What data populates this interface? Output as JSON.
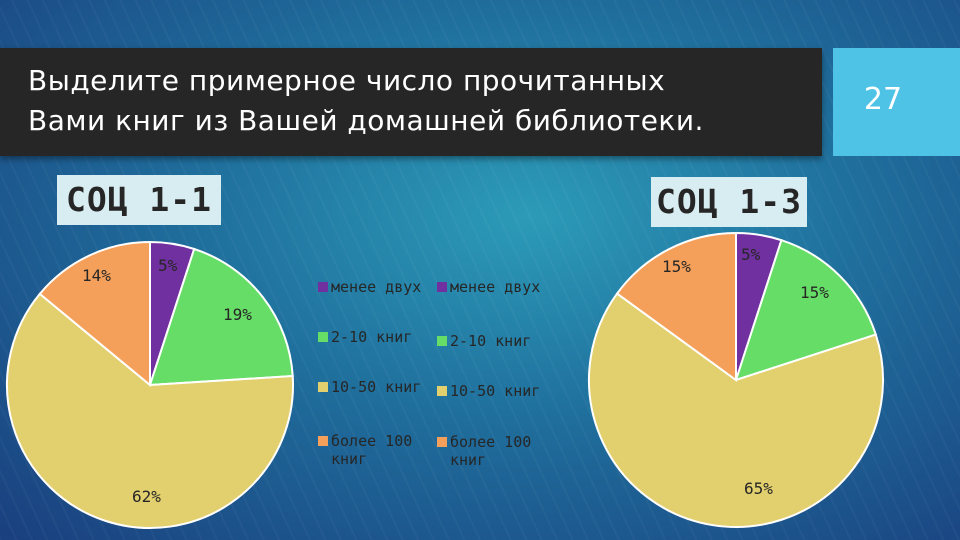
{
  "slide": {
    "title_line1": "Выделите примерное число прочитанных",
    "title_line2": "Вами книг из Вашей домашней библиотеки.",
    "page_number": "27"
  },
  "colors": {
    "purple": "#7030a0",
    "green": "#66dd66",
    "yellow": "#e2cf6e",
    "orange": "#f5a05a"
  },
  "legend": {
    "left": [
      "менее двух",
      "2-10 книг",
      "10-50 книг",
      "более 100 книг"
    ],
    "right": [
      "менее двух",
      "2-10 книг",
      "10-50 книг",
      "более 100 книг"
    ]
  },
  "chart_data": [
    {
      "type": "pie",
      "title": "СОЦ 1-1",
      "categories": [
        "менее двух",
        "2-10 книг",
        "10-50 книг",
        "более 100 книг"
      ],
      "values": [
        5,
        19,
        62,
        14
      ],
      "labels": [
        "5%",
        "19%",
        "62%",
        "14%"
      ]
    },
    {
      "type": "pie",
      "title": "СОЦ 1-3",
      "categories": [
        "менее двух",
        "2-10 книг",
        "10-50 книг",
        "более 100 книг"
      ],
      "values": [
        5,
        15,
        65,
        15
      ],
      "labels": [
        "5%",
        "15%",
        "65%",
        "15%"
      ]
    }
  ]
}
